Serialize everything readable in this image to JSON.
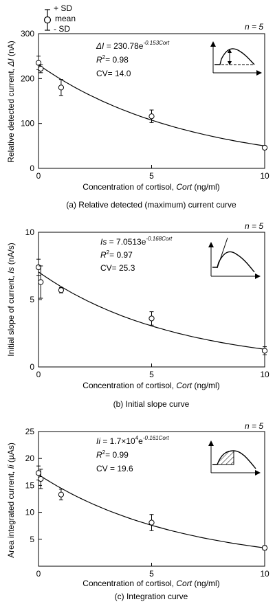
{
  "legend": {
    "plus_sd": "+ SD",
    "mean": "mean",
    "minus_sd": "- SD"
  },
  "chart_data": [
    {
      "type": "scatter",
      "caption": "(a) Relative detected (maximum) current curve",
      "n_label": "n = 5",
      "xlabel": "Concentration of cortisol, Cort (ng/ml)",
      "ylabel": "Relative detected current, ΔI (nA)",
      "xlim": [
        0,
        10
      ],
      "ylim": [
        0,
        300
      ],
      "xticks": [
        "0",
        "5",
        "10"
      ],
      "yticks": [
        "0",
        "100",
        "200",
        "300"
      ],
      "equation": {
        "lhs": "ΔI",
        "rhs": " = 230.78e",
        "exponent": "-0.153Cort"
      },
      "r2": "= 0.98",
      "cv": "CV= 14.0",
      "fit": {
        "a": 230.78,
        "k": -0.153
      },
      "points": [
        {
          "x": 0,
          "y": 235,
          "sd": 15
        },
        {
          "x": 0.1,
          "y": 222,
          "sd": 9
        },
        {
          "x": 1,
          "y": 180,
          "sd": 18
        },
        {
          "x": 5,
          "y": 116,
          "sd": 14
        },
        {
          "x": 10,
          "y": 46,
          "sd": 4
        }
      ]
    },
    {
      "type": "scatter",
      "caption": "(b) Initial slope curve",
      "n_label": "n = 5",
      "xlabel": "Concentration of cortisol, Cort (ng/ml)",
      "ylabel": "Initial slope of current, Is (nA/s)",
      "xlim": [
        0,
        10
      ],
      "ylim": [
        0,
        10
      ],
      "xticks": [
        "0",
        "5",
        "10"
      ],
      "yticks": [
        "0",
        "5",
        "10"
      ],
      "equation": {
        "lhs": "Is",
        "rhs": " = 7.0513e",
        "exponent": "-0.168Cort"
      },
      "r2": "= 0.97",
      "cv": "CV= 25.3",
      "fit": {
        "a": 7.0513,
        "k": -0.168
      },
      "points": [
        {
          "x": 0,
          "y": 7.4,
          "sd": 0.6
        },
        {
          "x": 0.1,
          "y": 6.3,
          "sd": 1.2
        },
        {
          "x": 1,
          "y": 5.7,
          "sd": 0.2
        },
        {
          "x": 5,
          "y": 3.6,
          "sd": 0.5
        },
        {
          "x": 10,
          "y": 1.2,
          "sd": 0.3
        }
      ]
    },
    {
      "type": "scatter",
      "caption": "(c) Integration curve",
      "n_label": "n = 5",
      "xlabel": "Concentration of cortisol, Cort (ng/ml)",
      "ylabel": "Area integrated current, Ii (µAs)",
      "xlim": [
        0,
        10
      ],
      "ylim": [
        0,
        25
      ],
      "xticks": [
        "0",
        "5",
        "10"
      ],
      "yticks": [
        "5",
        "10",
        "15",
        "20",
        "25"
      ],
      "equation": {
        "lhs": "Ii",
        "rhs": " = 1.7×10",
        "tenexp": "4",
        "rhs2": "e",
        "exponent": "-0.161Cort"
      },
      "r2": "= 0.99",
      "cv": "CV = 19.6",
      "fit": {
        "a": 17000,
        "k": -0.161,
        "scale": 0.001
      },
      "points": [
        {
          "x": 0,
          "y": 17.3,
          "sd": 1.3
        },
        {
          "x": 0.1,
          "y": 16.2,
          "sd": 1.8
        },
        {
          "x": 1,
          "y": 13.3,
          "sd": 1.0
        },
        {
          "x": 5,
          "y": 8.1,
          "sd": 1.5
        },
        {
          "x": 10,
          "y": 3.4,
          "sd": 0.4
        }
      ]
    }
  ]
}
